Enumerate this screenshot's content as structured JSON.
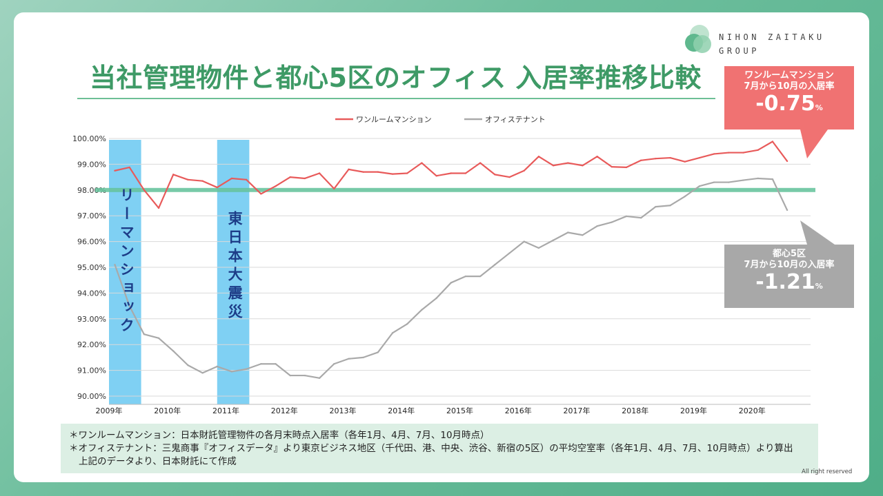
{
  "brand": {
    "line1": "NIHON ZAITAKU",
    "line2": "GROUP"
  },
  "title": "当社管理物件と都心5区のオフィス 入居率推移比較",
  "events": [
    {
      "label": "リーマンショック",
      "x_start": 2009.0,
      "x_end": 2009.55
    },
    {
      "label": "東日本大震災",
      "x_start": 2010.85,
      "x_end": 2011.4
    }
  ],
  "callouts": {
    "one_room": {
      "line1": "ワンルームマンション",
      "line2": "7月から10月の入居率",
      "value": "-0.75",
      "unit": "%"
    },
    "office": {
      "line1": "都心5区",
      "line2": "7月から10月の入居率",
      "value": "-1.21",
      "unit": "%"
    }
  },
  "notes": [
    "＊ワンルームマンション：日本財託管理物件の各月末時点入居率（各年1月、4月、7月、10月時点）",
    "＊オフィステナント：三鬼商事『オフィスデータ』より東京ビジネス地区（千代田、港、中央、渋谷、新宿の5区）の平均空室率（各年1月、4月、7月、10月時点）より算出",
    "上記のデータより、日本財託にて作成"
  ],
  "copyright": "All right reserved",
  "chart_data": {
    "type": "line",
    "x_labels": [
      "2009年",
      "2010年",
      "2011年",
      "2012年",
      "2013年",
      "2014年",
      "2015年",
      "2016年",
      "2017年",
      "2018年",
      "2019年",
      "2020年"
    ],
    "x_label_years": [
      2009,
      2010,
      2011,
      2012,
      2013,
      2014,
      2015,
      2016,
      2017,
      2018,
      2019,
      2020
    ],
    "quarters": [
      "1月",
      "4月",
      "7月",
      "10月"
    ],
    "y_ticks": [
      "90.00%",
      "91.00%",
      "92.00%",
      "93.00%",
      "94.00%",
      "95.00%",
      "96.00%",
      "97.00%",
      "98.00%",
      "99.00%",
      "100.00%"
    ],
    "ylim": [
      90,
      100
    ],
    "reference_line": 98.0,
    "series": [
      {
        "name": "ワンルームマンション",
        "color": "#e85a5a",
        "values": [
          98.75,
          98.88,
          98.0,
          97.3,
          98.6,
          98.4,
          98.35,
          98.1,
          98.45,
          98.4,
          97.85,
          98.15,
          98.5,
          98.45,
          98.65,
          98.05,
          98.8,
          98.7,
          98.7,
          98.62,
          98.65,
          99.05,
          98.55,
          98.65,
          98.65,
          99.05,
          98.6,
          98.5,
          98.75,
          99.3,
          98.95,
          99.05,
          98.95,
          99.3,
          98.9,
          98.88,
          99.15,
          99.22,
          99.25,
          99.1,
          99.25,
          99.4,
          99.45,
          99.45,
          99.55,
          99.88,
          99.12
        ]
      },
      {
        "name": "オフィステナント",
        "color": "#a9a9a9",
        "values": [
          95.1,
          93.5,
          92.4,
          92.25,
          91.75,
          91.2,
          90.9,
          91.15,
          90.95,
          91.05,
          91.25,
          91.25,
          90.8,
          90.8,
          90.7,
          91.25,
          91.45,
          91.5,
          91.7,
          92.45,
          92.8,
          93.35,
          93.8,
          94.4,
          94.65,
          94.65,
          95.1,
          95.55,
          96.0,
          95.75,
          96.05,
          96.35,
          96.25,
          96.6,
          96.75,
          96.98,
          96.92,
          97.35,
          97.4,
          97.75,
          98.15,
          98.3,
          98.3,
          98.38,
          98.45,
          98.42,
          97.22
        ]
      }
    ]
  }
}
